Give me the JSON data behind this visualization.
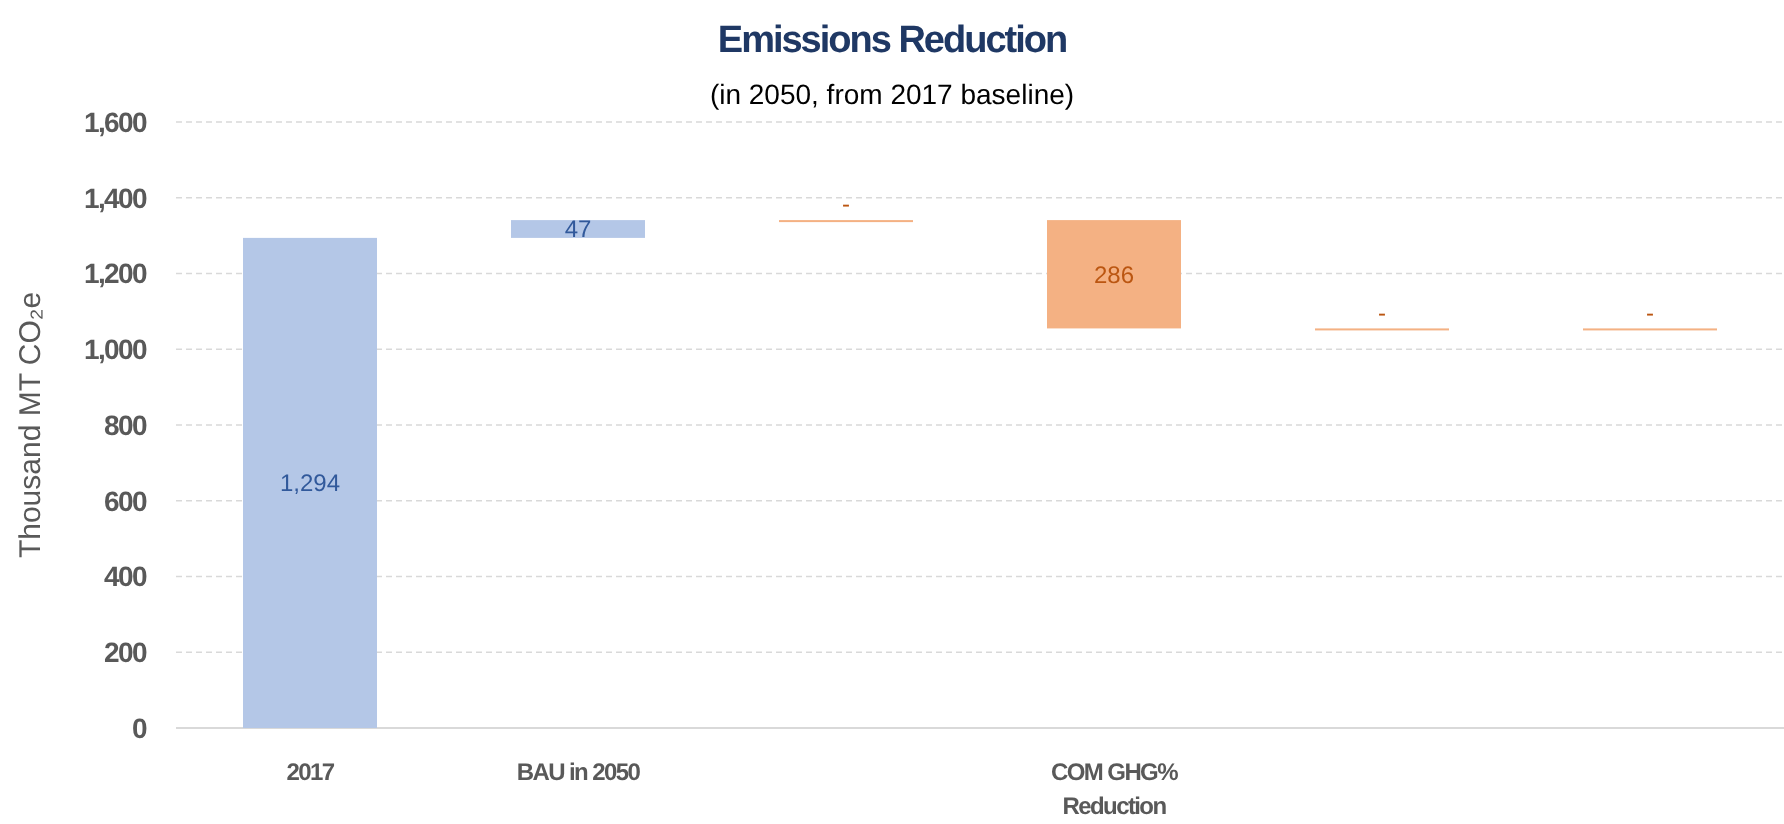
{
  "chart_data": {
    "type": "bar",
    "title": "Emissions Reduction",
    "subtitle": "(in 2050, from 2017 baseline)",
    "ylabel": "Thousand MT CO₂e",
    "categories": [
      "2017",
      "BAU in 2050",
      null,
      "COM GHG% Reduction",
      null,
      null
    ],
    "values": [
      1294,
      47,
      0,
      -286,
      0,
      0
    ],
    "base": [
      0,
      1294,
      1341,
      1341,
      1055,
      1055
    ],
    "colors": [
      "#b4c7e7",
      "#b4c7e7",
      "#f4b183",
      "#f4b183",
      "#f4b183",
      "#f4b183"
    ],
    "value_labels": [
      "1,294",
      "47",
      "-",
      "286",
      "-",
      "-"
    ],
    "ylim": [
      0,
      1600
    ],
    "yticks": [
      {
        "value": 0,
        "label": "0"
      },
      {
        "value": 200,
        "label": "200"
      },
      {
        "value": 400,
        "label": "400"
      },
      {
        "value": 600,
        "label": "600"
      },
      {
        "value": 800,
        "label": "800"
      },
      {
        "value": 1000,
        "label": "1,000"
      },
      {
        "value": 1200,
        "label": "1,200"
      },
      {
        "value": 1400,
        "label": "1,400"
      },
      {
        "value": 1600,
        "label": "1,600"
      }
    ],
    "grid": "y"
  }
}
